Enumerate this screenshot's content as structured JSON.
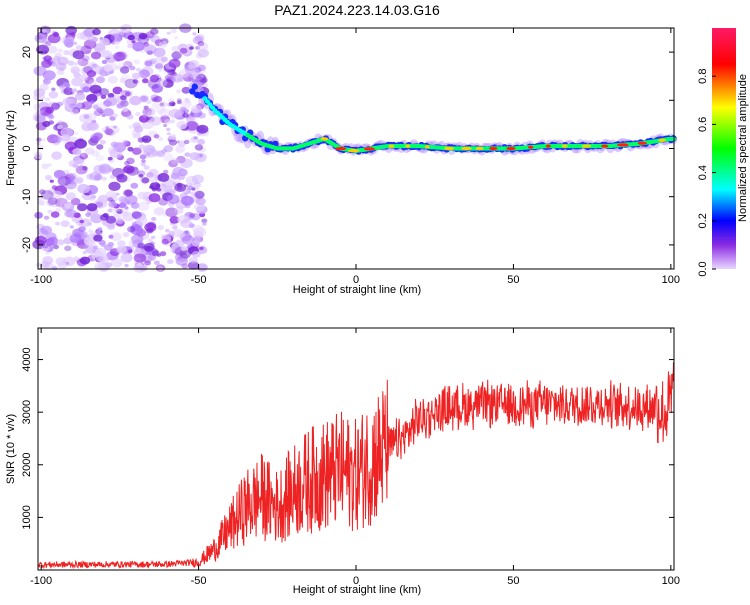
{
  "chart_data": [
    {
      "type": "heatmap",
      "title": "PAZ1.2024.223.14.03.G16",
      "xlabel": "Height of straight line (km)",
      "ylabel": "Frequency (Hz)",
      "xlim": [
        -101,
        101
      ],
      "ylim": [
        -25,
        25
      ],
      "xticks": [
        -100,
        -50,
        0,
        50,
        100
      ],
      "yticks": [
        -20,
        -10,
        0,
        10,
        20
      ],
      "colorbar": {
        "label": "Normalized spectral amplitude",
        "range": [
          0,
          1
        ],
        "ticks": [
          "0.0",
          "0.2",
          "0.4",
          "0.6",
          "0.8"
        ]
      },
      "ridge": {
        "description_points_x": [
          -50,
          -45,
          -40,
          -35,
          -30,
          -25,
          -20,
          -15,
          -10,
          -5,
          0,
          10,
          20,
          30,
          40,
          50,
          60,
          70,
          80,
          90,
          95,
          100
        ],
        "description_points_y": [
          12,
          8,
          5,
          3,
          1,
          0,
          0,
          1,
          2,
          0,
          -0.5,
          0.5,
          0.5,
          0,
          0,
          0,
          0.5,
          0.5,
          0.5,
          1,
          1.5,
          2
        ]
      },
      "noise_region_x": [
        -101,
        -50
      ],
      "colors": {
        "low": "#8a2be2",
        "high": "#ff0000"
      }
    },
    {
      "type": "line",
      "xlabel": "Height of straight line (km)",
      "ylabel": "SNR (10 * v/v)",
      "xlim": [
        -101,
        101
      ],
      "ylim": [
        0,
        4600
      ],
      "xticks": [
        -100,
        -50,
        0,
        50,
        100
      ],
      "yticks": [
        1000,
        2000,
        3000,
        4000
      ],
      "envelope": {
        "x": [
          -101,
          -60,
          -50,
          -45,
          -40,
          -35,
          -30,
          -25,
          -20,
          -15,
          -10,
          -5,
          0,
          5,
          10,
          15,
          20,
          25,
          30,
          40,
          50,
          60,
          70,
          80,
          90,
          95,
          98,
          100,
          101
        ],
        "y": [
          100,
          110,
          150,
          400,
          800,
          1200,
          1400,
          1200,
          1500,
          1700,
          1800,
          1900,
          1800,
          2100,
          2300,
          2500,
          2850,
          3000,
          3100,
          3150,
          3150,
          3150,
          3150,
          3150,
          3100,
          3100,
          3000,
          3200,
          3500
        ]
      },
      "color": "#ee2222"
    }
  ]
}
